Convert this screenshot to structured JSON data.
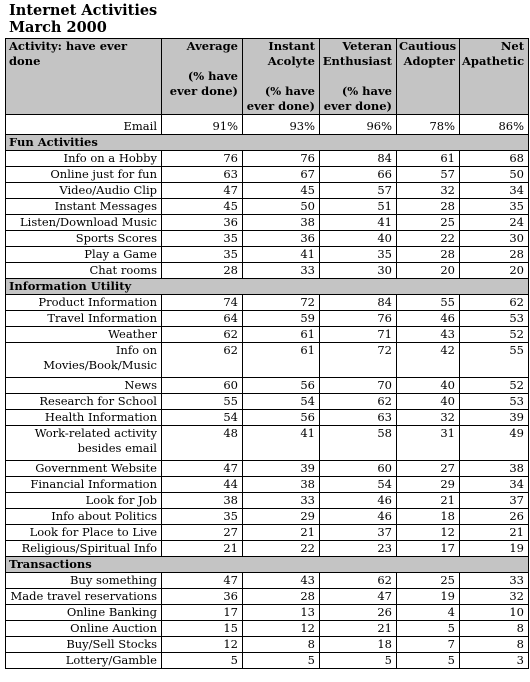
{
  "title": "Internet Activities",
  "subtitle": "March 2000",
  "columns": [
    {
      "name": "Activity: have ever done",
      "sub": ""
    },
    {
      "name": "Average",
      "sub": "(% have ever done)"
    },
    {
      "name": "Instant Acolyte",
      "sub": "(% have ever done)"
    },
    {
      "name": "Veteran Enthusiast",
      "sub": "(% have ever done)"
    },
    {
      "name": "Cautious Adopter",
      "sub": ""
    },
    {
      "name": "Net Apathetic",
      "sub": ""
    }
  ],
  "email": {
    "label": "Email",
    "values": [
      "91%",
      "93%",
      "96%",
      "78%",
      "86%"
    ]
  },
  "sections": [
    {
      "name": "Fun Activities",
      "rows": [
        {
          "label": "Info on a Hobby",
          "values": [
            "76",
            "76",
            "84",
            "61",
            "68"
          ]
        },
        {
          "label": "Online just for fun",
          "values": [
            "63",
            "67",
            "66",
            "57",
            "50"
          ]
        },
        {
          "label": "Video/Audio Clip",
          "values": [
            "47",
            "45",
            "57",
            "32",
            "34"
          ]
        },
        {
          "label": "Instant Messages",
          "values": [
            "45",
            "50",
            "51",
            "28",
            "35"
          ]
        },
        {
          "label": "Listen/Download Music",
          "values": [
            "36",
            "38",
            "41",
            "25",
            "24"
          ]
        },
        {
          "label": "Sports Scores",
          "values": [
            "35",
            "36",
            "40",
            "22",
            "30"
          ]
        },
        {
          "label": "Play a Game",
          "values": [
            "35",
            "41",
            "35",
            "28",
            "28"
          ]
        },
        {
          "label": "Chat rooms",
          "values": [
            "28",
            "33",
            "30",
            "20",
            "20"
          ]
        }
      ]
    },
    {
      "name": "Information Utility",
      "rows": [
        {
          "label": "Product Information",
          "values": [
            "74",
            "72",
            "84",
            "55",
            "62"
          ]
        },
        {
          "label": "Travel Information",
          "values": [
            "64",
            "59",
            "76",
            "46",
            "53"
          ]
        },
        {
          "label": "Weather",
          "values": [
            "62",
            "61",
            "71",
            "43",
            "52"
          ]
        },
        {
          "label": "Info on Movies/Book/Music",
          "values": [
            "62",
            "61",
            "72",
            "42",
            "55"
          ],
          "tall": true
        },
        {
          "label": "News",
          "values": [
            "60",
            "56",
            "70",
            "40",
            "52"
          ]
        },
        {
          "label": "Research for School",
          "values": [
            "55",
            "54",
            "62",
            "40",
            "53"
          ]
        },
        {
          "label": "Health Information",
          "values": [
            "54",
            "56",
            "63",
            "32",
            "39"
          ]
        },
        {
          "label": "Work-related activity besides email",
          "values": [
            "48",
            "41",
            "58",
            "31",
            "49"
          ],
          "tall": true
        },
        {
          "label": "Government Website",
          "values": [
            "47",
            "39",
            "60",
            "27",
            "38"
          ]
        },
        {
          "label": "Financial Information",
          "values": [
            "44",
            "38",
            "54",
            "29",
            "34"
          ]
        },
        {
          "label": "Look for Job",
          "values": [
            "38",
            "33",
            "46",
            "21",
            "37"
          ]
        },
        {
          "label": "Info about Politics",
          "values": [
            "35",
            "29",
            "46",
            "18",
            "26"
          ]
        },
        {
          "label": "Look for Place to Live",
          "values": [
            "27",
            "21",
            "37",
            "12",
            "21"
          ]
        },
        {
          "label": "Religious/Spiritual Info",
          "values": [
            "21",
            "22",
            "23",
            "17",
            "19"
          ]
        }
      ]
    },
    {
      "name": "Transactions",
      "rows": [
        {
          "label": "Buy something",
          "values": [
            "47",
            "43",
            "62",
            "25",
            "33"
          ]
        },
        {
          "label": "Made travel reservations",
          "values": [
            "36",
            "28",
            "47",
            "19",
            "32"
          ]
        },
        {
          "label": "Online Banking",
          "values": [
            "17",
            "13",
            "26",
            "4",
            "10"
          ]
        },
        {
          "label": "Online Auction",
          "values": [
            "15",
            "12",
            "21",
            "5",
            "8"
          ]
        },
        {
          "label": "Buy/Sell Stocks",
          "values": [
            "12",
            "8",
            "18",
            "7",
            "8"
          ]
        },
        {
          "label": "Lottery/Gamble",
          "values": [
            "5",
            "5",
            "5",
            "5",
            "3"
          ]
        }
      ]
    }
  ]
}
